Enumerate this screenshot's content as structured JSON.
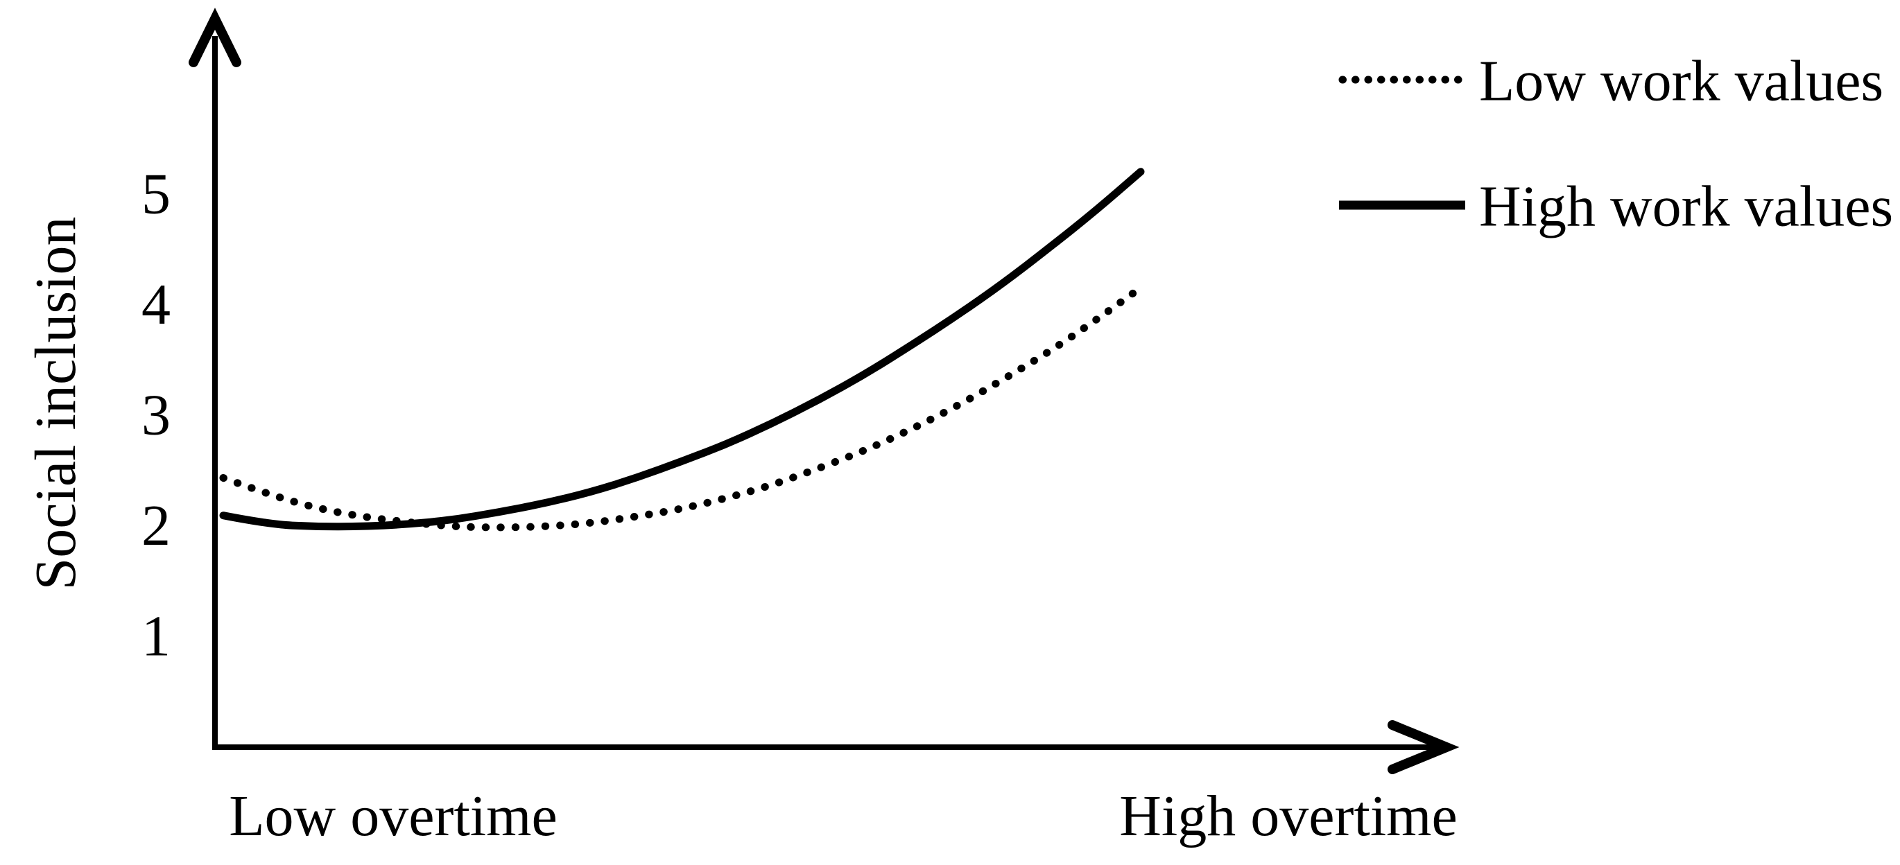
{
  "figure": {
    "background": "#ffffff",
    "ink_color": "#000000"
  },
  "chart_data": {
    "type": "line",
    "title": "",
    "ylabel": "Social inclusion",
    "xlabel": "",
    "x_axis_labels": [
      "Low overtime",
      "High overtime"
    ],
    "y_ticks": [
      1,
      2,
      3,
      4,
      5
    ],
    "y_tick_labels_top_to_bottom": [
      "5",
      "4",
      "3",
      "2",
      "1"
    ],
    "ylim": [
      0,
      6.5
    ],
    "grid": false,
    "legend_position": "top-right",
    "axes_style": "open arrows, no tick marks",
    "series": [
      {
        "name": "Low work values",
        "style": "dotted",
        "x_percent": [
          0,
          5,
          10,
          15,
          20,
          25,
          30,
          35,
          40,
          45,
          50,
          55,
          60,
          65,
          70,
          75,
          80,
          85,
          90,
          95,
          100
        ],
        "y": [
          2.42,
          2.27,
          2.15,
          2.07,
          2.02,
          1.98,
          1.97,
          1.98,
          2.01,
          2.07,
          2.14,
          2.24,
          2.36,
          2.51,
          2.67,
          2.86,
          3.07,
          3.31,
          3.56,
          3.84,
          4.14
        ]
      },
      {
        "name": "High work values",
        "style": "solid",
        "x_percent": [
          0,
          5,
          10,
          15,
          20,
          25,
          30,
          35,
          40,
          45,
          50,
          55,
          60,
          65,
          70,
          75,
          80,
          85,
          90,
          95,
          100
        ],
        "y": [
          2.08,
          2.0,
          1.98,
          1.98,
          2.0,
          2.04,
          2.11,
          2.19,
          2.29,
          2.42,
          2.57,
          2.73,
          2.92,
          3.13,
          3.36,
          3.62,
          3.89,
          4.18,
          4.5,
          4.83,
          5.19
        ]
      }
    ]
  }
}
